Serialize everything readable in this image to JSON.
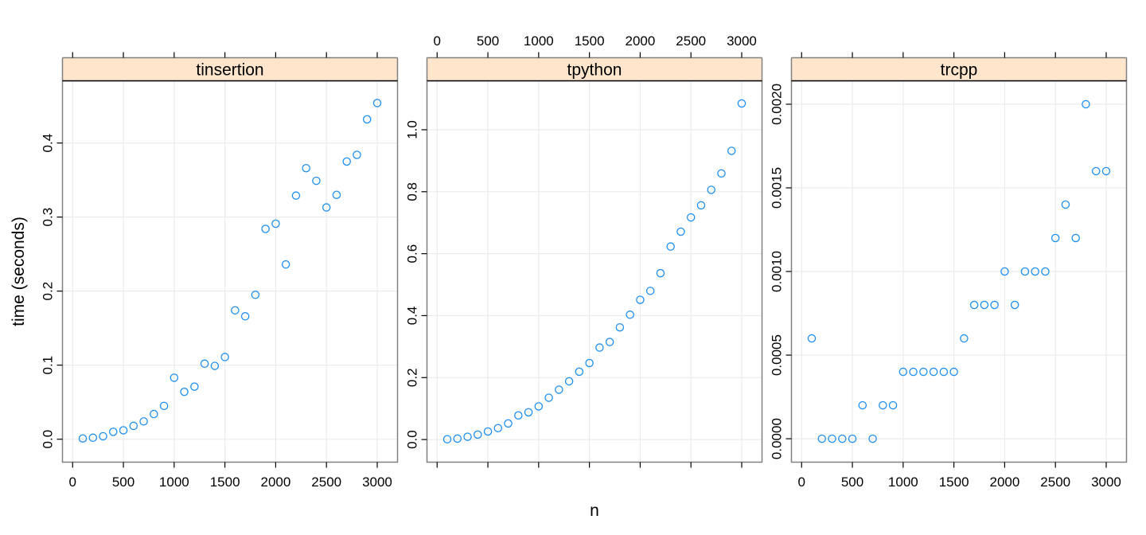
{
  "chart_data": {
    "type": "scatter",
    "layout": "lattice xyplot, 3 panels side by side, free y scales, shared x scale",
    "xlabel": "n",
    "ylabel": "time (seconds)",
    "grid": true,
    "x_ticks": [
      0,
      500,
      1000,
      1500,
      2000,
      2500,
      3000
    ],
    "xlim": [
      -100,
      3200
    ],
    "colors": {
      "points": "#1E8FF0",
      "strip_bg": "#FFE5CC",
      "grid": "#EBEBEB",
      "panel_border": "#808080",
      "strip_border": "#000000"
    },
    "panels": [
      {
        "name": "tinsertion",
        "y_ticks": [
          0.0,
          0.1,
          0.2,
          0.3,
          0.4
        ],
        "y_tick_labels": [
          "0.0",
          "0.1",
          "0.2",
          "0.3",
          "0.4"
        ],
        "ylim": [
          -0.031,
          0.484
        ],
        "x_axis_side": "bottom",
        "y_axis_side": "left",
        "x": [
          100,
          200,
          300,
          400,
          500,
          600,
          700,
          800,
          900,
          1000,
          1100,
          1200,
          1300,
          1400,
          1500,
          1600,
          1700,
          1800,
          1900,
          2000,
          2100,
          2200,
          2300,
          2400,
          2500,
          2600,
          2700,
          2800,
          2900,
          3000
        ],
        "y": [
          0.001,
          0.002,
          0.004,
          0.01,
          0.012,
          0.018,
          0.024,
          0.034,
          0.045,
          0.083,
          0.064,
          0.071,
          0.102,
          0.099,
          0.111,
          0.174,
          0.166,
          0.195,
          0.284,
          0.291,
          0.236,
          0.329,
          0.366,
          0.349,
          0.313,
          0.33,
          0.375,
          0.384,
          0.432,
          0.454
        ]
      },
      {
        "name": "tpython",
        "y_ticks": [
          0.0,
          0.2,
          0.4,
          0.6,
          0.8,
          1.0
        ],
        "y_tick_labels": [
          "0.0",
          "0.2",
          "0.4",
          "0.6",
          "0.8",
          "1.0"
        ],
        "ylim": [
          -0.073,
          1.158
        ],
        "x_axis_side": "top",
        "y_axis_side": "left",
        "x": [
          100,
          200,
          300,
          400,
          500,
          600,
          700,
          800,
          900,
          1000,
          1100,
          1200,
          1300,
          1400,
          1500,
          1600,
          1700,
          1800,
          1900,
          2000,
          2100,
          2200,
          2300,
          2400,
          2500,
          2600,
          2700,
          2800,
          2900,
          3000
        ],
        "y": [
          0.001,
          0.003,
          0.009,
          0.016,
          0.026,
          0.037,
          0.052,
          0.078,
          0.088,
          0.107,
          0.135,
          0.161,
          0.188,
          0.219,
          0.247,
          0.297,
          0.315,
          0.362,
          0.403,
          0.451,
          0.48,
          0.537,
          0.623,
          0.671,
          0.717,
          0.756,
          0.806,
          0.859,
          0.932,
          1.085
        ]
      },
      {
        "name": "trcpp",
        "y_ticks": [
          0.0,
          0.0005,
          0.001,
          0.0015,
          0.002
        ],
        "y_tick_labels": [
          "0.0000",
          "0.0005",
          "0.0010",
          "0.0015",
          "0.0020"
        ],
        "ylim": [
          -0.00014,
          0.00214
        ],
        "x_axis_side": "bottom",
        "y_axis_side": "left",
        "x": [
          100,
          200,
          300,
          400,
          500,
          600,
          700,
          800,
          900,
          1000,
          1100,
          1200,
          1300,
          1400,
          1500,
          1600,
          1700,
          1800,
          1900,
          2000,
          2100,
          2200,
          2300,
          2400,
          2500,
          2600,
          2700,
          2800,
          2900,
          3000
        ],
        "y": [
          0.0006,
          0.0,
          0.0,
          0.0,
          0.0,
          0.0002,
          0.0,
          0.0002,
          0.0002,
          0.0004,
          0.0004,
          0.0004,
          0.0004,
          0.0004,
          0.0004,
          0.0006,
          0.0008,
          0.0008,
          0.0008,
          0.001,
          0.0008,
          0.001,
          0.001,
          0.001,
          0.0012,
          0.0014,
          0.0012,
          0.002,
          0.0016,
          0.0016
        ]
      }
    ]
  },
  "labels": {
    "xlabel": "n",
    "ylabel": "time (seconds)",
    "strip_1": "tinsertion",
    "strip_2": "tpython",
    "strip_3": "trcpp"
  }
}
